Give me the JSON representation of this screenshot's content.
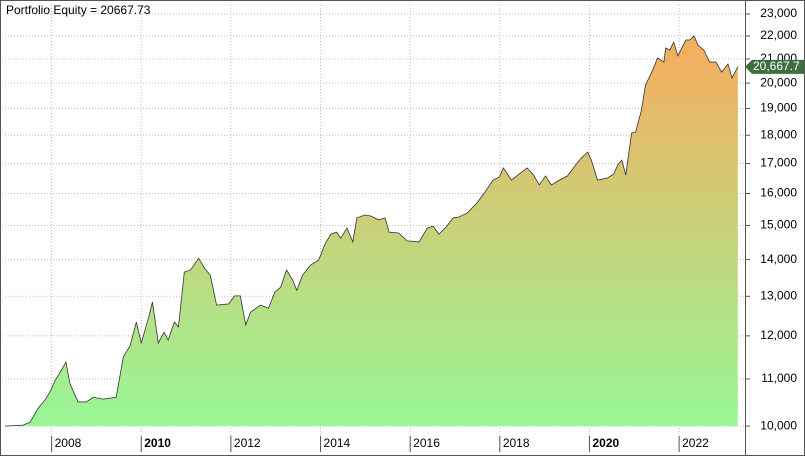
{
  "chart_data": {
    "type": "area",
    "title": "Portfolio Equity = 20667.73",
    "log_y": true,
    "grid": true,
    "line_color": "#333333",
    "color_top": "#f7ac5e",
    "color_bottom": "#98f796",
    "last_label_color": "#3f6e3f",
    "xlim": [
      2006.96,
      2023.47
    ],
    "xticks": [
      2008,
      2010,
      2012,
      2014,
      2016,
      2018,
      2020,
      2022
    ],
    "ylim": [
      9490,
      23420
    ],
    "yticks": [
      {
        "value": 10000,
        "label": "10,000"
      },
      {
        "value": 11000,
        "label": "11,000"
      },
      {
        "value": 12000,
        "label": "12,000"
      },
      {
        "value": 13000,
        "label": "13,000"
      },
      {
        "value": 14000,
        "label": "14,000"
      },
      {
        "value": 15000,
        "label": "15,000"
      },
      {
        "value": 16000,
        "label": "16,000"
      },
      {
        "value": 17000,
        "label": "17,000"
      },
      {
        "value": 18000,
        "label": "18,000"
      },
      {
        "value": 19000,
        "label": "19,000"
      },
      {
        "value": 20000,
        "label": "20,000"
      },
      {
        "value": 21000,
        "label": "21,000"
      },
      {
        "value": 22000,
        "label": "22,000"
      },
      {
        "value": 23000,
        "label": "23,000"
      }
    ],
    "series": [
      {
        "name": "Portfolio Equity",
        "x": [
          2006.96,
          2007.36,
          2007.52,
          2007.7,
          2007.85,
          2007.96,
          2008.08,
          2008.19,
          2008.32,
          2008.41,
          2008.59,
          2008.77,
          2008.93,
          2009.15,
          2009.44,
          2009.6,
          2009.75,
          2009.89,
          2010.0,
          2010.16,
          2010.25,
          2010.38,
          2010.51,
          2010.6,
          2010.74,
          2010.83,
          2010.96,
          2011.1,
          2011.28,
          2011.41,
          2011.54,
          2011.68,
          2011.95,
          2012.08,
          2012.21,
          2012.33,
          2012.44,
          2012.66,
          2012.84,
          2012.98,
          2013.11,
          2013.24,
          2013.38,
          2013.47,
          2013.6,
          2013.78,
          2013.96,
          2014.09,
          2014.23,
          2014.36,
          2014.45,
          2014.59,
          2014.72,
          2014.81,
          2014.99,
          2015.12,
          2015.3,
          2015.44,
          2015.53,
          2015.75,
          2015.93,
          2016.2,
          2016.38,
          2016.51,
          2016.64,
          2016.78,
          2016.96,
          2017.09,
          2017.27,
          2017.49,
          2017.67,
          2017.85,
          2017.99,
          2018.08,
          2018.26,
          2018.43,
          2018.61,
          2018.75,
          2018.88,
          2019.02,
          2019.15,
          2019.33,
          2019.51,
          2019.69,
          2019.82,
          2019.96,
          2020.04,
          2020.18,
          2020.4,
          2020.54,
          2020.63,
          2020.72,
          2020.81,
          2020.94,
          2021.03,
          2021.16,
          2021.25,
          2021.39,
          2021.52,
          2021.66,
          2021.7,
          2021.79,
          2021.88,
          2021.97,
          2022.06,
          2022.15,
          2022.24,
          2022.33,
          2022.42,
          2022.55,
          2022.68,
          2022.82,
          2022.95,
          2023.09,
          2023.18,
          2023.31
        ],
        "values": [
          10000,
          10020,
          10080,
          10370,
          10540,
          10710,
          10970,
          11150,
          11380,
          10890,
          10500,
          10500,
          10600,
          10560,
          10600,
          11500,
          11760,
          12340,
          11830,
          12440,
          12850,
          11830,
          12090,
          11900,
          12340,
          12220,
          13650,
          13710,
          14040,
          13760,
          13570,
          12770,
          12800,
          13010,
          13010,
          12270,
          12590,
          12770,
          12690,
          13110,
          13240,
          13710,
          13430,
          13160,
          13570,
          13850,
          13990,
          14420,
          14740,
          14800,
          14620,
          14920,
          14510,
          15230,
          15320,
          15290,
          15170,
          15230,
          14800,
          14770,
          14540,
          14510,
          14920,
          14980,
          14740,
          14920,
          15230,
          15260,
          15380,
          15700,
          16050,
          16440,
          16540,
          16850,
          16440,
          16640,
          16850,
          16610,
          16280,
          16580,
          16280,
          16440,
          16580,
          16950,
          17190,
          17400,
          17120,
          16440,
          16510,
          16640,
          16950,
          17120,
          16610,
          18080,
          18120,
          18940,
          19920,
          20450,
          21040,
          20870,
          21470,
          21380,
          21730,
          21130,
          21470,
          21820,
          21820,
          22000,
          21600,
          21380,
          20870,
          20870,
          20450,
          20790,
          20210,
          20667.73
        ],
        "value_labels": [
          null,
          null,
          null,
          null,
          null,
          null,
          null,
          null,
          null,
          null,
          null,
          null,
          null,
          null,
          null,
          null,
          null,
          null,
          null,
          null,
          null,
          null,
          null,
          null,
          null,
          null,
          null,
          null,
          null,
          null,
          null,
          null,
          null,
          null,
          null,
          null,
          null,
          null,
          null,
          null,
          null,
          null,
          null,
          null,
          null,
          null,
          null,
          null,
          null,
          null,
          null,
          null,
          null,
          null,
          null,
          null,
          null,
          null,
          null,
          null,
          null,
          null,
          null,
          null,
          null,
          null,
          null,
          null,
          null,
          null,
          null,
          null,
          null,
          null,
          null,
          null,
          null,
          null,
          null,
          null,
          null,
          null,
          null,
          null,
          null,
          null,
          null,
          null,
          null,
          null,
          null,
          null,
          null,
          null,
          null,
          null,
          null,
          null,
          null,
          null,
          null,
          null,
          null,
          null,
          null,
          null,
          null,
          null,
          null,
          null,
          null,
          null,
          null,
          null,
          null,
          "20,667.7"
        ]
      }
    ]
  }
}
